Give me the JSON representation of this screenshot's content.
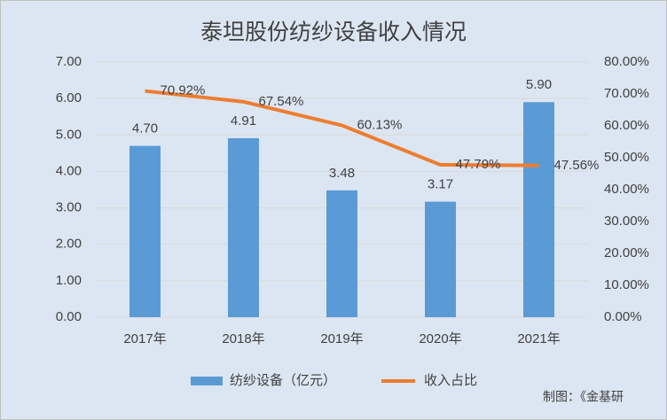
{
  "chart_data": {
    "type": "bar-line",
    "title": "泰坦股份纺纱设备收入情况",
    "categories": [
      "2017年",
      "2018年",
      "2019年",
      "2020年",
      "2021年"
    ],
    "series": [
      {
        "name": "纺纱设备（亿元）",
        "type": "bar",
        "color": "#5b9bd5",
        "values": [
          4.7,
          4.91,
          3.48,
          3.17,
          5.9
        ],
        "value_labels": [
          "4.70",
          "4.91",
          "3.48",
          "3.17",
          "5.90"
        ]
      },
      {
        "name": "收入占比",
        "type": "line",
        "axis": "y2",
        "color": "#ed7d31",
        "values": [
          70.92,
          67.54,
          60.13,
          47.79,
          47.56
        ],
        "value_labels": [
          "70.92%",
          "67.54%",
          "60.13%",
          "47.79%",
          "47.56%"
        ]
      }
    ],
    "ylim": [
      0,
      7
    ],
    "yticks": [
      {
        "value": 0,
        "label": "0.00"
      },
      {
        "value": 1,
        "label": "1.00"
      },
      {
        "value": 2,
        "label": "2.00"
      },
      {
        "value": 3,
        "label": "3.00"
      },
      {
        "value": 4,
        "label": "4.00"
      },
      {
        "value": 5,
        "label": "5.00"
      },
      {
        "value": 6,
        "label": "6.00"
      },
      {
        "value": 7,
        "label": "7.00"
      }
    ],
    "y2lim": [
      0,
      80
    ],
    "y2ticks": [
      {
        "value": 0,
        "label": "0.00%"
      },
      {
        "value": 10,
        "label": "10.00%"
      },
      {
        "value": 20,
        "label": "20.00%"
      },
      {
        "value": 30,
        "label": "30.00%"
      },
      {
        "value": 40,
        "label": "40.00%"
      },
      {
        "value": 50,
        "label": "50.00%"
      },
      {
        "value": 60,
        "label": "60.00%"
      },
      {
        "value": 70,
        "label": "70.00%"
      },
      {
        "value": 80,
        "label": "80.00%"
      }
    ],
    "grid": true,
    "legend": "bottom",
    "source": "制图：《金基研"
  }
}
